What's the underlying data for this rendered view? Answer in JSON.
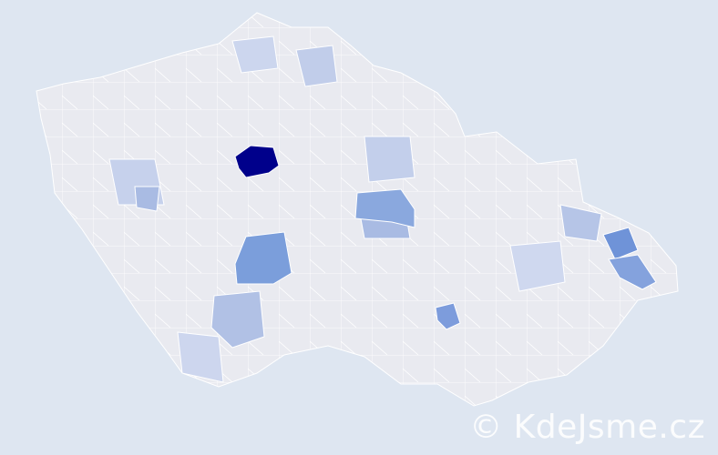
{
  "map": {
    "background_color": "#dee6f1",
    "base_region_color": "#e9eaf0",
    "border_color": "#ffffff",
    "highlight_colors": {
      "highest": "#00008b",
      "high": "#7b9edb",
      "medium": "#aebfe4",
      "low": "#ccd6ee"
    }
  },
  "watermark": {
    "text": "© KdeJsme.cz"
  }
}
